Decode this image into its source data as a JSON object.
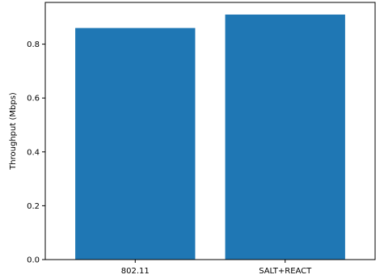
{
  "chart_data": {
    "type": "bar",
    "categories": [
      "802.11",
      "SALT+REACT"
    ],
    "values": [
      0.86,
      0.91
    ],
    "ylabel": "Throughput (Mbps)",
    "xlabel": "",
    "title": "",
    "ylim": [
      0,
      0.955
    ],
    "yticks": [
      "0.0",
      "0.2",
      "0.4",
      "0.6",
      "0.8"
    ],
    "bar_color": "#1f77b4",
    "grid": false,
    "legend": "none"
  }
}
